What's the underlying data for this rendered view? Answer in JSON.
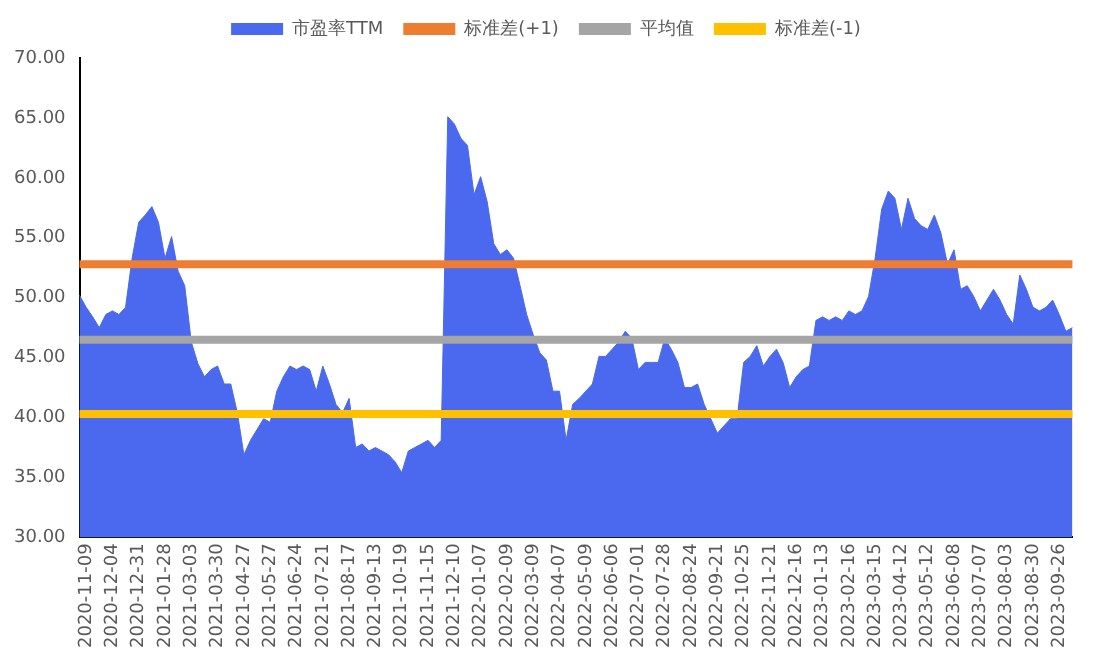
{
  "chart_data": {
    "type": "area",
    "categories": [
      null,
      "2020-11-09",
      null,
      null,
      null,
      "2020-12-04",
      null,
      null,
      null,
      "2020-12-31",
      null,
      null,
      null,
      "2021-01-28",
      null,
      null,
      null,
      "2021-03-03",
      null,
      null,
      null,
      "2021-03-30",
      null,
      null,
      null,
      "2021-04-27",
      null,
      null,
      null,
      "2021-05-27",
      null,
      null,
      null,
      "2021-06-24",
      null,
      null,
      null,
      "2021-07-21",
      null,
      null,
      null,
      "2021-08-17",
      null,
      null,
      null,
      "2021-09-13",
      null,
      null,
      null,
      "2021-10-19",
      null,
      null,
      null,
      "2021-11-15",
      null,
      null,
      null,
      "2021-12-10",
      null,
      null,
      null,
      "2022-01-07",
      null,
      null,
      null,
      "2022-02-09",
      null,
      null,
      null,
      "2022-03-09",
      null,
      null,
      null,
      "2022-04-07",
      null,
      null,
      null,
      "2022-05-09",
      null,
      null,
      null,
      "2022-06-06",
      null,
      null,
      null,
      "2022-07-01",
      null,
      null,
      null,
      "2022-07-28",
      null,
      null,
      null,
      "2022-08-24",
      null,
      null,
      null,
      "2022-09-21",
      null,
      null,
      null,
      "2022-10-25",
      null,
      null,
      null,
      "2022-11-21",
      null,
      null,
      null,
      "2022-12-16",
      null,
      null,
      null,
      "2023-01-13",
      null,
      null,
      null,
      "2023-02-16",
      null,
      null,
      null,
      "2023-03-15",
      null,
      null,
      null,
      "2023-04-12",
      null,
      null,
      null,
      "2023-05-12",
      null,
      null,
      null,
      "2023-06-08",
      null,
      null,
      null,
      "2023-07-07",
      null,
      null,
      null,
      "2023-08-03",
      null,
      null,
      null,
      "2023-08-30",
      null,
      null,
      null,
      "2023-09-26",
      null,
      null
    ],
    "series": [
      {
        "name": "市盈率TTM",
        "color": "#4a69ee",
        "values": [
          50.2,
          49.2,
          48.4,
          47.5,
          48.6,
          48.9,
          48.6,
          49.2,
          53.3,
          56.3,
          56.9,
          57.6,
          56.3,
          53.3,
          55.1,
          52.2,
          51.0,
          46.3,
          44.5,
          43.4,
          44.0,
          44.3,
          42.8,
          42.8,
          40.4,
          36.9,
          38.1,
          39.0,
          39.9,
          39.6,
          42.2,
          43.4,
          44.3,
          44.0,
          44.3,
          44.0,
          42.2,
          44.3,
          42.8,
          41.1,
          40.4,
          41.6,
          37.5,
          37.8,
          37.2,
          37.5,
          37.2,
          36.9,
          36.3,
          35.4,
          37.2,
          37.5,
          37.8,
          38.1,
          37.5,
          38.1,
          65.1,
          64.5,
          63.3,
          62.7,
          58.6,
          60.1,
          58.0,
          54.5,
          53.6,
          54.0,
          53.3,
          51.0,
          48.6,
          46.9,
          45.4,
          44.8,
          42.2,
          42.2,
          38.1,
          41.1,
          41.6,
          42.2,
          42.8,
          45.1,
          45.1,
          45.7,
          46.3,
          47.2,
          46.6,
          44.0,
          44.6,
          44.6,
          44.6,
          46.6,
          45.7,
          44.6,
          42.5,
          42.5,
          42.8,
          41.1,
          39.9,
          38.7,
          39.3,
          39.9,
          39.9,
          44.6,
          45.1,
          46.0,
          44.3,
          45.1,
          45.7,
          44.6,
          42.5,
          43.4,
          44.0,
          44.3,
          48.1,
          48.4,
          48.1,
          48.4,
          48.1,
          48.9,
          48.6,
          48.9,
          50.1,
          53.3,
          57.4,
          58.9,
          58.3,
          55.7,
          58.3,
          56.6,
          56.0,
          55.7,
          56.9,
          55.4,
          52.8,
          54.0,
          50.7,
          51.0,
          50.1,
          48.9,
          49.8,
          50.7,
          49.8,
          48.6,
          47.8,
          51.9,
          50.7,
          49.2,
          48.9,
          49.2,
          49.8,
          48.6,
          47.2,
          47.5
        ]
      }
    ],
    "ref_lines": [
      {
        "axis": "y",
        "value": 52.8,
        "label": "标准差(+1)",
        "color": "#ed7d31"
      },
      {
        "axis": "y",
        "value": 46.5,
        "label": "平均值",
        "color": "#a5a5a5"
      },
      {
        "axis": "y",
        "value": 40.3,
        "label": "标准差(-1)",
        "color": "#ffc000"
      }
    ],
    "ylim": [
      30,
      70
    ],
    "yticks": [
      {
        "value": 30,
        "label": "30.00"
      },
      {
        "value": 35,
        "label": "35.00"
      },
      {
        "value": 40,
        "label": "40.00"
      },
      {
        "value": 45,
        "label": "45.00"
      },
      {
        "value": 50,
        "label": "50.00"
      },
      {
        "value": 55,
        "label": "55.00"
      },
      {
        "value": 60,
        "label": "60.00"
      },
      {
        "value": 65,
        "label": "65.00"
      },
      {
        "value": 70,
        "label": "70.00"
      }
    ],
    "grid": false,
    "legend": "top",
    "marker": "none"
  }
}
